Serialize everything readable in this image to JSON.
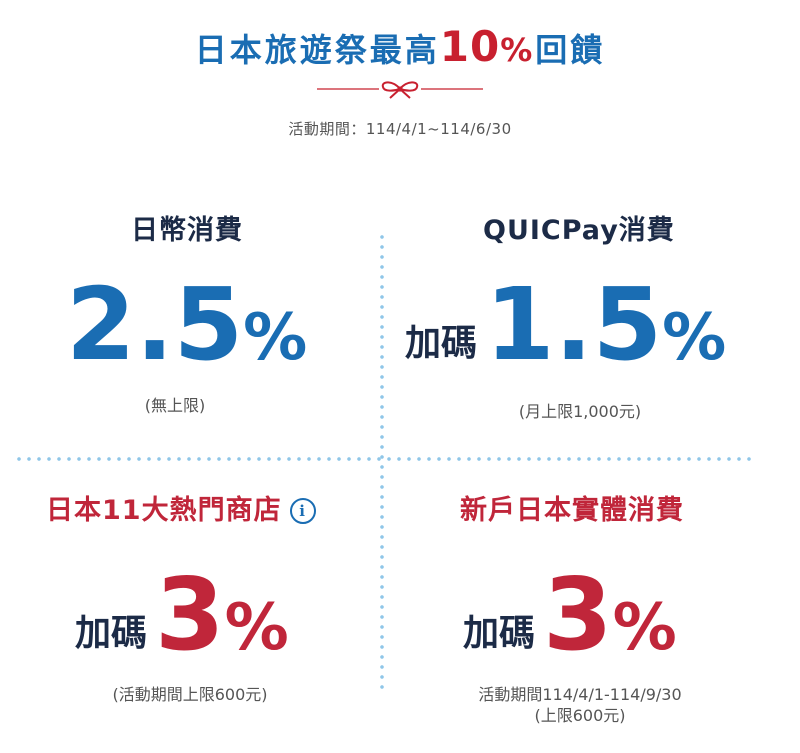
{
  "header": {
    "title_prefix": "日本旅遊祭最高",
    "title_number": "10",
    "title_percent": "%",
    "title_suffix": "回饋",
    "period": "活動期間：114/4/1~114/6/30",
    "accent_color": "#1a6db3",
    "highlight_color": "#c8202f"
  },
  "sections": {
    "jpy": {
      "title": "日幣消費",
      "rate": "2.5",
      "percent": "%",
      "note": "(無上限)"
    },
    "quicpay": {
      "title": "QUICPay消費",
      "prefix": "加碼",
      "rate": "1.5",
      "percent": "%",
      "note": "(月上限1,000元)"
    },
    "stores": {
      "title": "日本11大熱門商店",
      "icon": "info-icon",
      "icon_glyph": "i",
      "prefix": "加碼",
      "rate": "3",
      "percent": "%",
      "note": "(活動期間上限600元)"
    },
    "newuser": {
      "title": "新戶日本實體消費",
      "prefix": "加碼",
      "rate": "3",
      "percent": "%",
      "note_line1": "活動期間114/4/1-114/9/30",
      "note_line2": "(上限600元)"
    }
  }
}
